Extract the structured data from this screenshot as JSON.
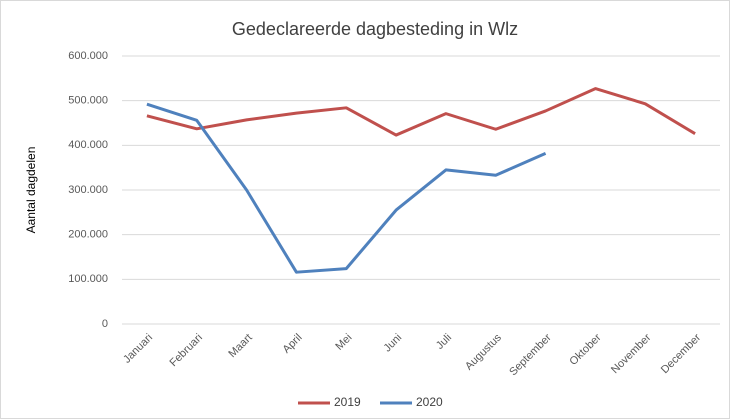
{
  "chart_data": {
    "type": "line",
    "title": "Gedeclareerde dagbesteding in Wlz",
    "y_label": "Aantal dagdelen",
    "categories": [
      "Januari",
      "Februari",
      "Maart",
      "April",
      "Mei",
      "Juni",
      "Juli",
      "Augustus",
      "September",
      "Oktober",
      "November",
      "December"
    ],
    "series": [
      {
        "name": "2019",
        "color": "#c0504d",
        "values": [
          466000,
          437000,
          457000,
          472000,
          484000,
          423000,
          471000,
          436000,
          477000,
          527000,
          493000,
          426000
        ]
      },
      {
        "name": "2020",
        "color": "#4f81bd",
        "values": [
          492000,
          456000,
          300000,
          116000,
          124000,
          255000,
          345000,
          333000,
          382000,
          null,
          null,
          null
        ]
      }
    ],
    "ylim": [
      0,
      600000
    ],
    "yticks": [
      0,
      {
        "value": 100000,
        "label": "100.000"
      },
      {
        "value": 200000,
        "label": "200.000"
      },
      {
        "value": 300000,
        "label": "300.000"
      },
      {
        "value": 400000,
        "label": "400.000"
      },
      {
        "value": 500000,
        "label": "500.000"
      },
      {
        "value": 600000,
        "label": "600.000"
      }
    ],
    "grid": true,
    "legend": "bottom"
  }
}
